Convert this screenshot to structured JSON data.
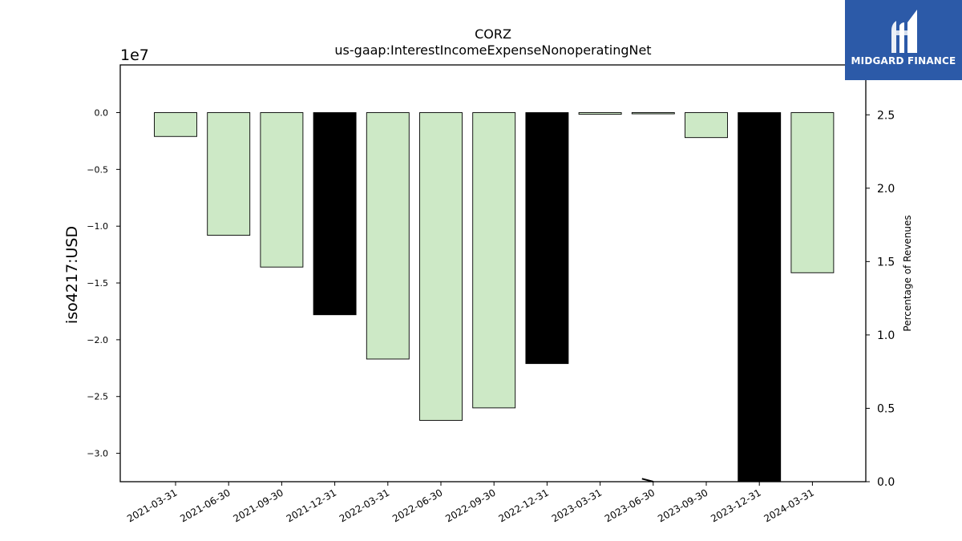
{
  "chart_data": {
    "type": "bar",
    "title": "CORZ",
    "subtitle": "us-gaap:InterestIncomeExpenseNonoperatingNet",
    "ylabel": "iso4217:USD",
    "y_offset_label": "1e7",
    "y2label": "Percentage of Revenues",
    "categories": [
      "2021-03-31",
      "2021-06-30",
      "2021-09-30",
      "2021-12-31",
      "2022-03-31",
      "2022-06-30",
      "2022-09-30",
      "2022-12-31",
      "2023-03-31",
      "2023-06-30",
      "2023-09-30",
      "2023-12-31",
      "2024-03-31"
    ],
    "values": [
      -2100000,
      -10800000,
      -13600000,
      -17800000,
      -21700000,
      -27100000,
      -26000000,
      -22100000,
      -150000,
      -50000,
      -2200000,
      -32500000,
      -14100000
    ],
    "bar_colors": [
      "#cde9c6",
      "#cde9c6",
      "#cde9c6",
      "#000000",
      "#cde9c6",
      "#cde9c6",
      "#cde9c6",
      "#000000",
      "#cde9c6",
      "#cde9c6",
      "#cde9c6",
      "#000000",
      "#cde9c6"
    ],
    "ylim": [
      -32500000,
      4200000
    ],
    "yticks": [
      0,
      -5000000,
      -10000000,
      -15000000,
      -20000000,
      -25000000,
      -30000000
    ],
    "ytick_labels": [
      "0.0",
      "−0.5",
      "−1.0",
      "−1.5",
      "−2.0",
      "−2.5",
      "−3.0"
    ],
    "y2lim": [
      0,
      2.84
    ],
    "y2ticks": [
      0,
      0.5,
      1.0,
      1.5,
      2.0,
      2.5
    ],
    "y2tick_labels": [
      "0.0",
      "0.5",
      "1.0",
      "1.5",
      "2.0",
      "2.5"
    ],
    "percentage_series": {
      "values": [
        null,
        null,
        null,
        null,
        null,
        null,
        null,
        null,
        null,
        0.02,
        0.0,
        null,
        null
      ]
    },
    "grid": false,
    "legend": "none"
  },
  "watermark": {
    "text": "MIDGARD FINANCE",
    "background": "#2c5aa8"
  }
}
